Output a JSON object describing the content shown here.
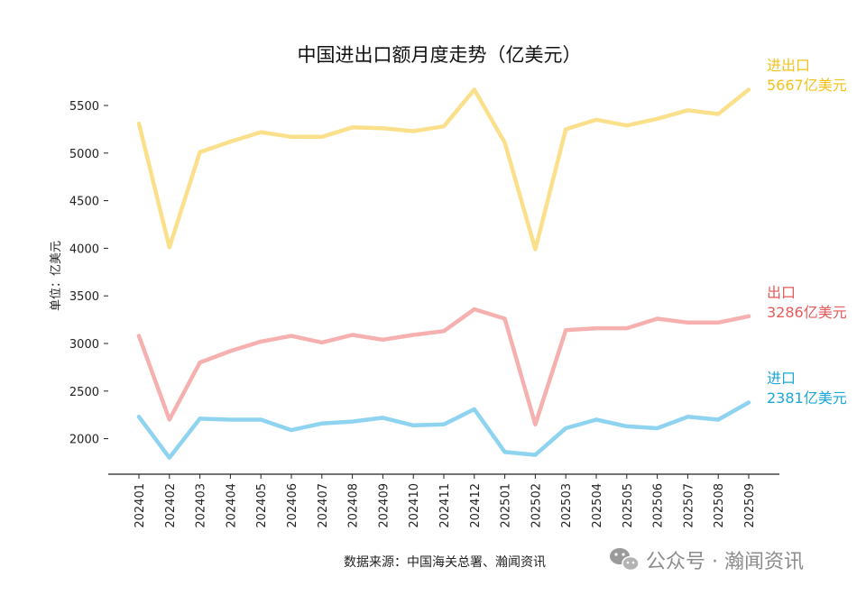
{
  "chart_data": {
    "type": "line",
    "title": "中国进出口额月度走势（亿美元）",
    "ylabel": "单位：亿美元",
    "xlabel": "",
    "ylim": [
      1620,
      5920
    ],
    "yticks": [
      2000,
      2500,
      3000,
      3500,
      4000,
      4500,
      5000,
      5500
    ],
    "grid": false,
    "categories": [
      "202401",
      "202402",
      "202403",
      "202404",
      "202405",
      "202406",
      "202407",
      "202408",
      "202409",
      "202410",
      "202411",
      "202412",
      "202501",
      "202502",
      "202503",
      "202504",
      "202505",
      "202506",
      "202507",
      "202508",
      "202509"
    ],
    "series": [
      {
        "name": "进出口",
        "value_label": "5667亿美元",
        "color": "#fbe08c",
        "label_color": "#f2c21a",
        "values": [
          5310,
          4010,
          5010,
          5120,
          5220,
          5170,
          5170,
          5270,
          5260,
          5230,
          5280,
          5667,
          5110,
          3990,
          5250,
          5350,
          5290,
          5360,
          5450,
          5410,
          5667
        ]
      },
      {
        "name": "出口",
        "value_label": "3286亿美元",
        "color": "#f6b0b0",
        "label_color": "#e75a5a",
        "values": [
          3080,
          2200,
          2800,
          2920,
          3020,
          3080,
          3010,
          3090,
          3040,
          3090,
          3130,
          3360,
          3260,
          2150,
          3140,
          3160,
          3160,
          3260,
          3220,
          3220,
          3286
        ]
      },
      {
        "name": "进口",
        "value_label": "2381亿美元",
        "color": "#8ed3f0",
        "label_color": "#1aa8d8",
        "values": [
          2230,
          1800,
          2210,
          2200,
          2200,
          2090,
          2160,
          2180,
          2220,
          2140,
          2150,
          2310,
          1860,
          1830,
          2110,
          2200,
          2130,
          2110,
          2230,
          2200,
          2381
        ]
      }
    ]
  },
  "source": "数据来源：中国海关总署、瀚闻资讯",
  "watermark": {
    "icon": "wechat-icon",
    "text": "公众号 · 瀚闻资讯",
    "color": "#8c8c8c"
  }
}
